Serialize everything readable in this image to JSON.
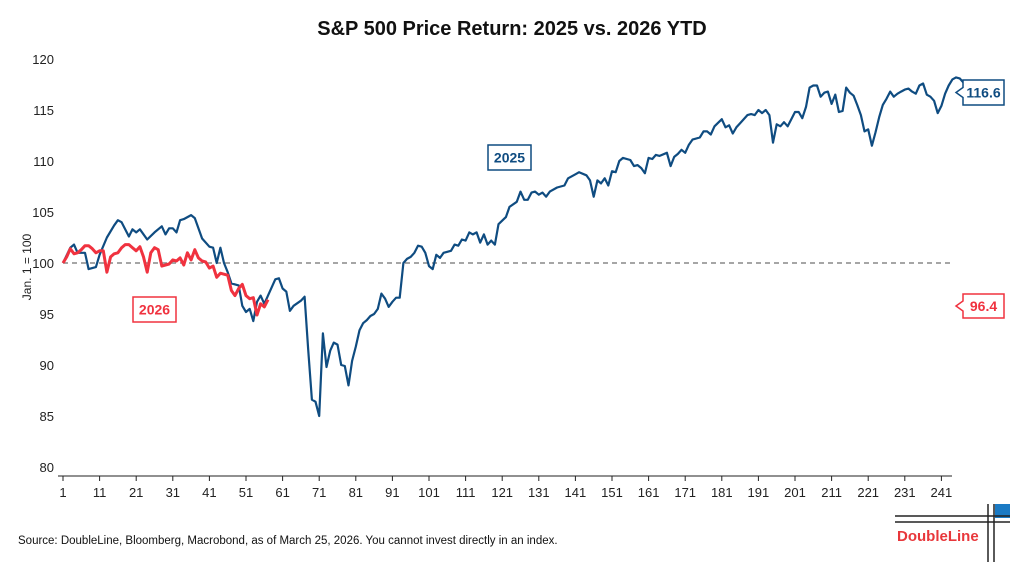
{
  "chart_data": {
    "type": "line",
    "title": "S&P 500 Price Return: 2025 vs. 2026 YTD",
    "ylabel": "Jan. 1 = 100",
    "xlabel": "",
    "ylim": [
      80,
      120
    ],
    "xlim": [
      1,
      251
    ],
    "yticks": [
      80,
      85,
      90,
      95,
      100,
      105,
      110,
      115,
      120
    ],
    "xticks": [
      1,
      11,
      21,
      31,
      41,
      51,
      61,
      71,
      81,
      91,
      101,
      111,
      121,
      131,
      141,
      151,
      161,
      171,
      181,
      191,
      201,
      211,
      221,
      231,
      241
    ],
    "reference_line": 100,
    "grid": false,
    "series": [
      {
        "name": "2025",
        "color": "#0f4c81",
        "end_label": "116.6",
        "x": [
          1,
          3,
          4,
          5,
          7,
          8,
          10,
          11,
          13,
          15,
          16,
          17,
          19,
          20,
          21,
          22,
          24,
          26,
          28,
          29,
          30,
          31,
          32,
          33,
          34,
          36,
          37,
          39,
          41,
          42,
          43,
          44,
          45,
          46,
          47,
          49,
          50,
          51,
          52,
          53,
          54,
          55,
          56,
          57,
          59,
          60,
          61,
          62,
          63,
          64,
          66,
          67,
          68,
          69,
          70,
          71,
          72,
          73,
          74,
          75,
          76,
          77,
          78,
          79,
          80,
          81,
          82,
          83,
          84,
          85,
          86,
          87,
          88,
          89,
          90,
          91,
          92,
          93,
          94,
          95,
          96,
          97,
          98,
          99,
          100,
          101,
          102,
          103,
          104,
          105,
          107,
          108,
          109,
          110,
          111,
          112,
          113,
          114,
          115,
          116,
          117,
          118,
          119,
          120,
          122,
          123,
          125,
          126,
          127,
          128,
          129,
          130,
          131,
          132,
          133,
          134,
          136,
          138,
          139,
          141,
          142,
          144,
          145,
          146,
          147,
          148,
          149,
          150,
          151,
          152,
          153,
          154,
          156,
          157,
          158,
          159,
          160,
          161,
          162,
          163,
          164,
          166,
          167,
          168,
          169,
          170,
          171,
          172,
          173,
          175,
          176,
          177,
          178,
          179,
          181,
          182,
          183,
          184,
          185,
          186,
          188,
          189,
          190,
          191,
          192,
          193,
          194,
          195,
          196,
          197,
          198,
          199,
          200,
          201,
          202,
          203,
          204,
          205,
          206,
          207,
          208,
          209,
          210,
          211,
          212,
          213,
          214,
          215,
          216,
          217,
          218,
          219,
          220,
          221,
          222,
          223,
          224,
          225,
          226,
          227,
          228,
          229,
          230,
          231,
          232,
          233,
          234,
          235,
          236,
          237,
          238,
          239,
          240,
          241,
          242,
          243,
          244,
          245,
          246,
          247,
          248,
          249
        ],
        "y": [
          100,
          101.5,
          101.8,
          101,
          101,
          99.4,
          99.6,
          100.8,
          102.5,
          103.7,
          104.2,
          104,
          102.6,
          103.3,
          103,
          103.3,
          102.3,
          103,
          103.6,
          102.8,
          103.4,
          103.4,
          103,
          104.2,
          104.3,
          104.7,
          104.4,
          102.4,
          101.6,
          101.5,
          100,
          101.5,
          100,
          99.1,
          98,
          97.8,
          95.8,
          95.2,
          95.5,
          94.3,
          96.2,
          96.8,
          96,
          96.8,
          98.4,
          98.5,
          97.5,
          97.2,
          95.3,
          95.8,
          96.3,
          96.7,
          91.5,
          86.6,
          86.4,
          85,
          93.1,
          89.8,
          91.4,
          92.2,
          92,
          90,
          89.9,
          88,
          90.4,
          91.8,
          93.4,
          94.1,
          94.4,
          94.8,
          95,
          95.5,
          97,
          96.5,
          95.7,
          96.2,
          96.6,
          96.6,
          100,
          100.4,
          100.6,
          101,
          101.7,
          101.6,
          101,
          99.7,
          99.4,
          100.8,
          100.5,
          101,
          101.2,
          101.8,
          101.7,
          102.3,
          102.2,
          103,
          102.8,
          103,
          102,
          102.8,
          101.8,
          102.2,
          101.8,
          103.8,
          104.5,
          105.5,
          106,
          107,
          106.2,
          106.2,
          106.9,
          107,
          106.7,
          106.9,
          106.5,
          107,
          107.4,
          107.6,
          108.3,
          108.7,
          108.9,
          108.6,
          108.1,
          106.5,
          108.1,
          107.8,
          108.3,
          107.6,
          109,
          108.9,
          110,
          110.3,
          110.1,
          109.5,
          109.6,
          109.3,
          108.8,
          110.3,
          110.2,
          110.6,
          110.5,
          110.8,
          109.5,
          110.4,
          110.7,
          111.1,
          110.8,
          111.6,
          112.1,
          112.3,
          112.9,
          112.9,
          112.6,
          113.4,
          114.1,
          113.3,
          113.5,
          112.7,
          113.3,
          113.7,
          114.5,
          114.6,
          114.5,
          115,
          114.7,
          115,
          114.5,
          111.8,
          113.6,
          113.4,
          113.8,
          113.4,
          114.1,
          114.8,
          114.8,
          114.2,
          115.3,
          117.2,
          117.4,
          117.4,
          116.3,
          116.7,
          116.8,
          115.6,
          116.5,
          114.8,
          114.9,
          117.2,
          116.7,
          116.4,
          115.5,
          114.5,
          112.9,
          113.1,
          111.5,
          112.8,
          114.3,
          115.5,
          116.1,
          116.8,
          116.3,
          116.6,
          116.8,
          117,
          117.1,
          116.8,
          116.6,
          117.4,
          117.6,
          116.5,
          116.3,
          115.9,
          114.7,
          115.4,
          116.6,
          117.4,
          118,
          118.2,
          118.1,
          117.7,
          117.5,
          116.6
        ]
      },
      {
        "name": "2026",
        "color": "#f0323f",
        "end_label": "96.4",
        "x": [
          1,
          2,
          3,
          4,
          5,
          6,
          7,
          8,
          9,
          10,
          11,
          12,
          13,
          14,
          15,
          16,
          17,
          18,
          19,
          20,
          21,
          22,
          23,
          24,
          25,
          26,
          27,
          28,
          29,
          30,
          31,
          32,
          33,
          34,
          35,
          36,
          37,
          38,
          39,
          40,
          41,
          42,
          43,
          44,
          45,
          46,
          47,
          48,
          49,
          50,
          51,
          52,
          53,
          54,
          55,
          56,
          57
        ],
        "y": [
          100,
          100.6,
          101.4,
          100.9,
          101,
          101.3,
          101.7,
          101.7,
          101.4,
          101,
          101.2,
          101.2,
          99.1,
          100.6,
          100.9,
          101,
          101.5,
          101.8,
          101.8,
          101.5,
          101.2,
          101.6,
          100.6,
          99.1,
          101,
          101.5,
          101.3,
          99.7,
          99.8,
          99.9,
          100.3,
          100.2,
          100.5,
          99.8,
          101,
          100.3,
          101.3,
          100.5,
          100.2,
          100.1,
          99.5,
          99.7,
          98.6,
          99,
          98.9,
          98.8,
          97.3,
          96.8,
          97.5,
          97.9,
          96.8,
          96.5,
          96.6,
          94.9,
          96,
          95.7,
          96.4
        ]
      }
    ]
  },
  "source": "Source: DoubleLine, Bloomberg, Macrobond, as of March 25, 2026. You cannot invest directly in an index.",
  "logo": "DoubleLine"
}
